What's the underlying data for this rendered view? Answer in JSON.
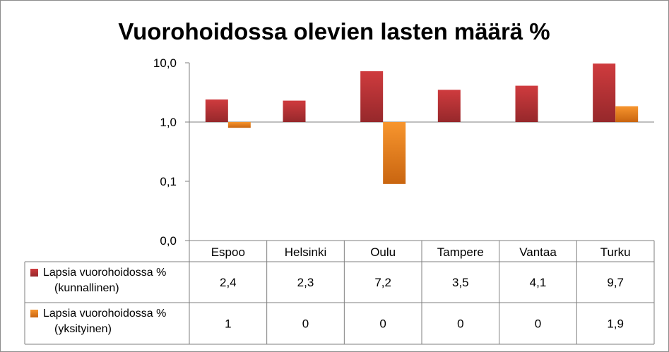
{
  "chart_data": {
    "type": "bar",
    "title": "Vuorohoidossa olevien lasten määrä %",
    "xlabel": "",
    "ylabel": "",
    "y_scale": "log",
    "y_baseline": 1.0,
    "ylim": [
      0.01,
      10
    ],
    "ytick_labels": [
      "10,0",
      "1,0",
      "0,1",
      "0,0"
    ],
    "ytick_values": [
      10,
      1,
      0.1,
      0.01
    ],
    "categories": [
      "Espoo",
      "Helsinki",
      "Oulu",
      "Tampere",
      "Vantaa",
      "Turku"
    ],
    "series": [
      {
        "name": "Lapsia vuorohoidossa % (kunnallinen)",
        "name_lines": [
          "Lapsia vuorohoidossa %",
          "(kunnallinen)"
        ],
        "values": [
          2.4,
          2.3,
          7.2,
          3.5,
          4.1,
          9.7
        ],
        "labels": [
          "2,4",
          "2,3",
          "7,2",
          "3,5",
          "4,1",
          "9,7"
        ],
        "bar_values": [
          2.4,
          2.3,
          7.2,
          3.5,
          4.1,
          9.7
        ],
        "color": "#c0373a"
      },
      {
        "name": "Lapsia vuorohoidossa % (yksityinen)",
        "name_lines": [
          "Lapsia vuorohoidossa %",
          "(yksityinen)"
        ],
        "values": [
          1,
          0,
          0,
          0,
          0,
          1.9
        ],
        "labels": [
          "1",
          "0",
          "0",
          "0",
          "0",
          "1,9"
        ],
        "bar_values": [
          0.8,
          null,
          0.09,
          null,
          null,
          1.85
        ],
        "color": "#f28a24"
      }
    ],
    "grid": false,
    "legend": "data-table"
  }
}
